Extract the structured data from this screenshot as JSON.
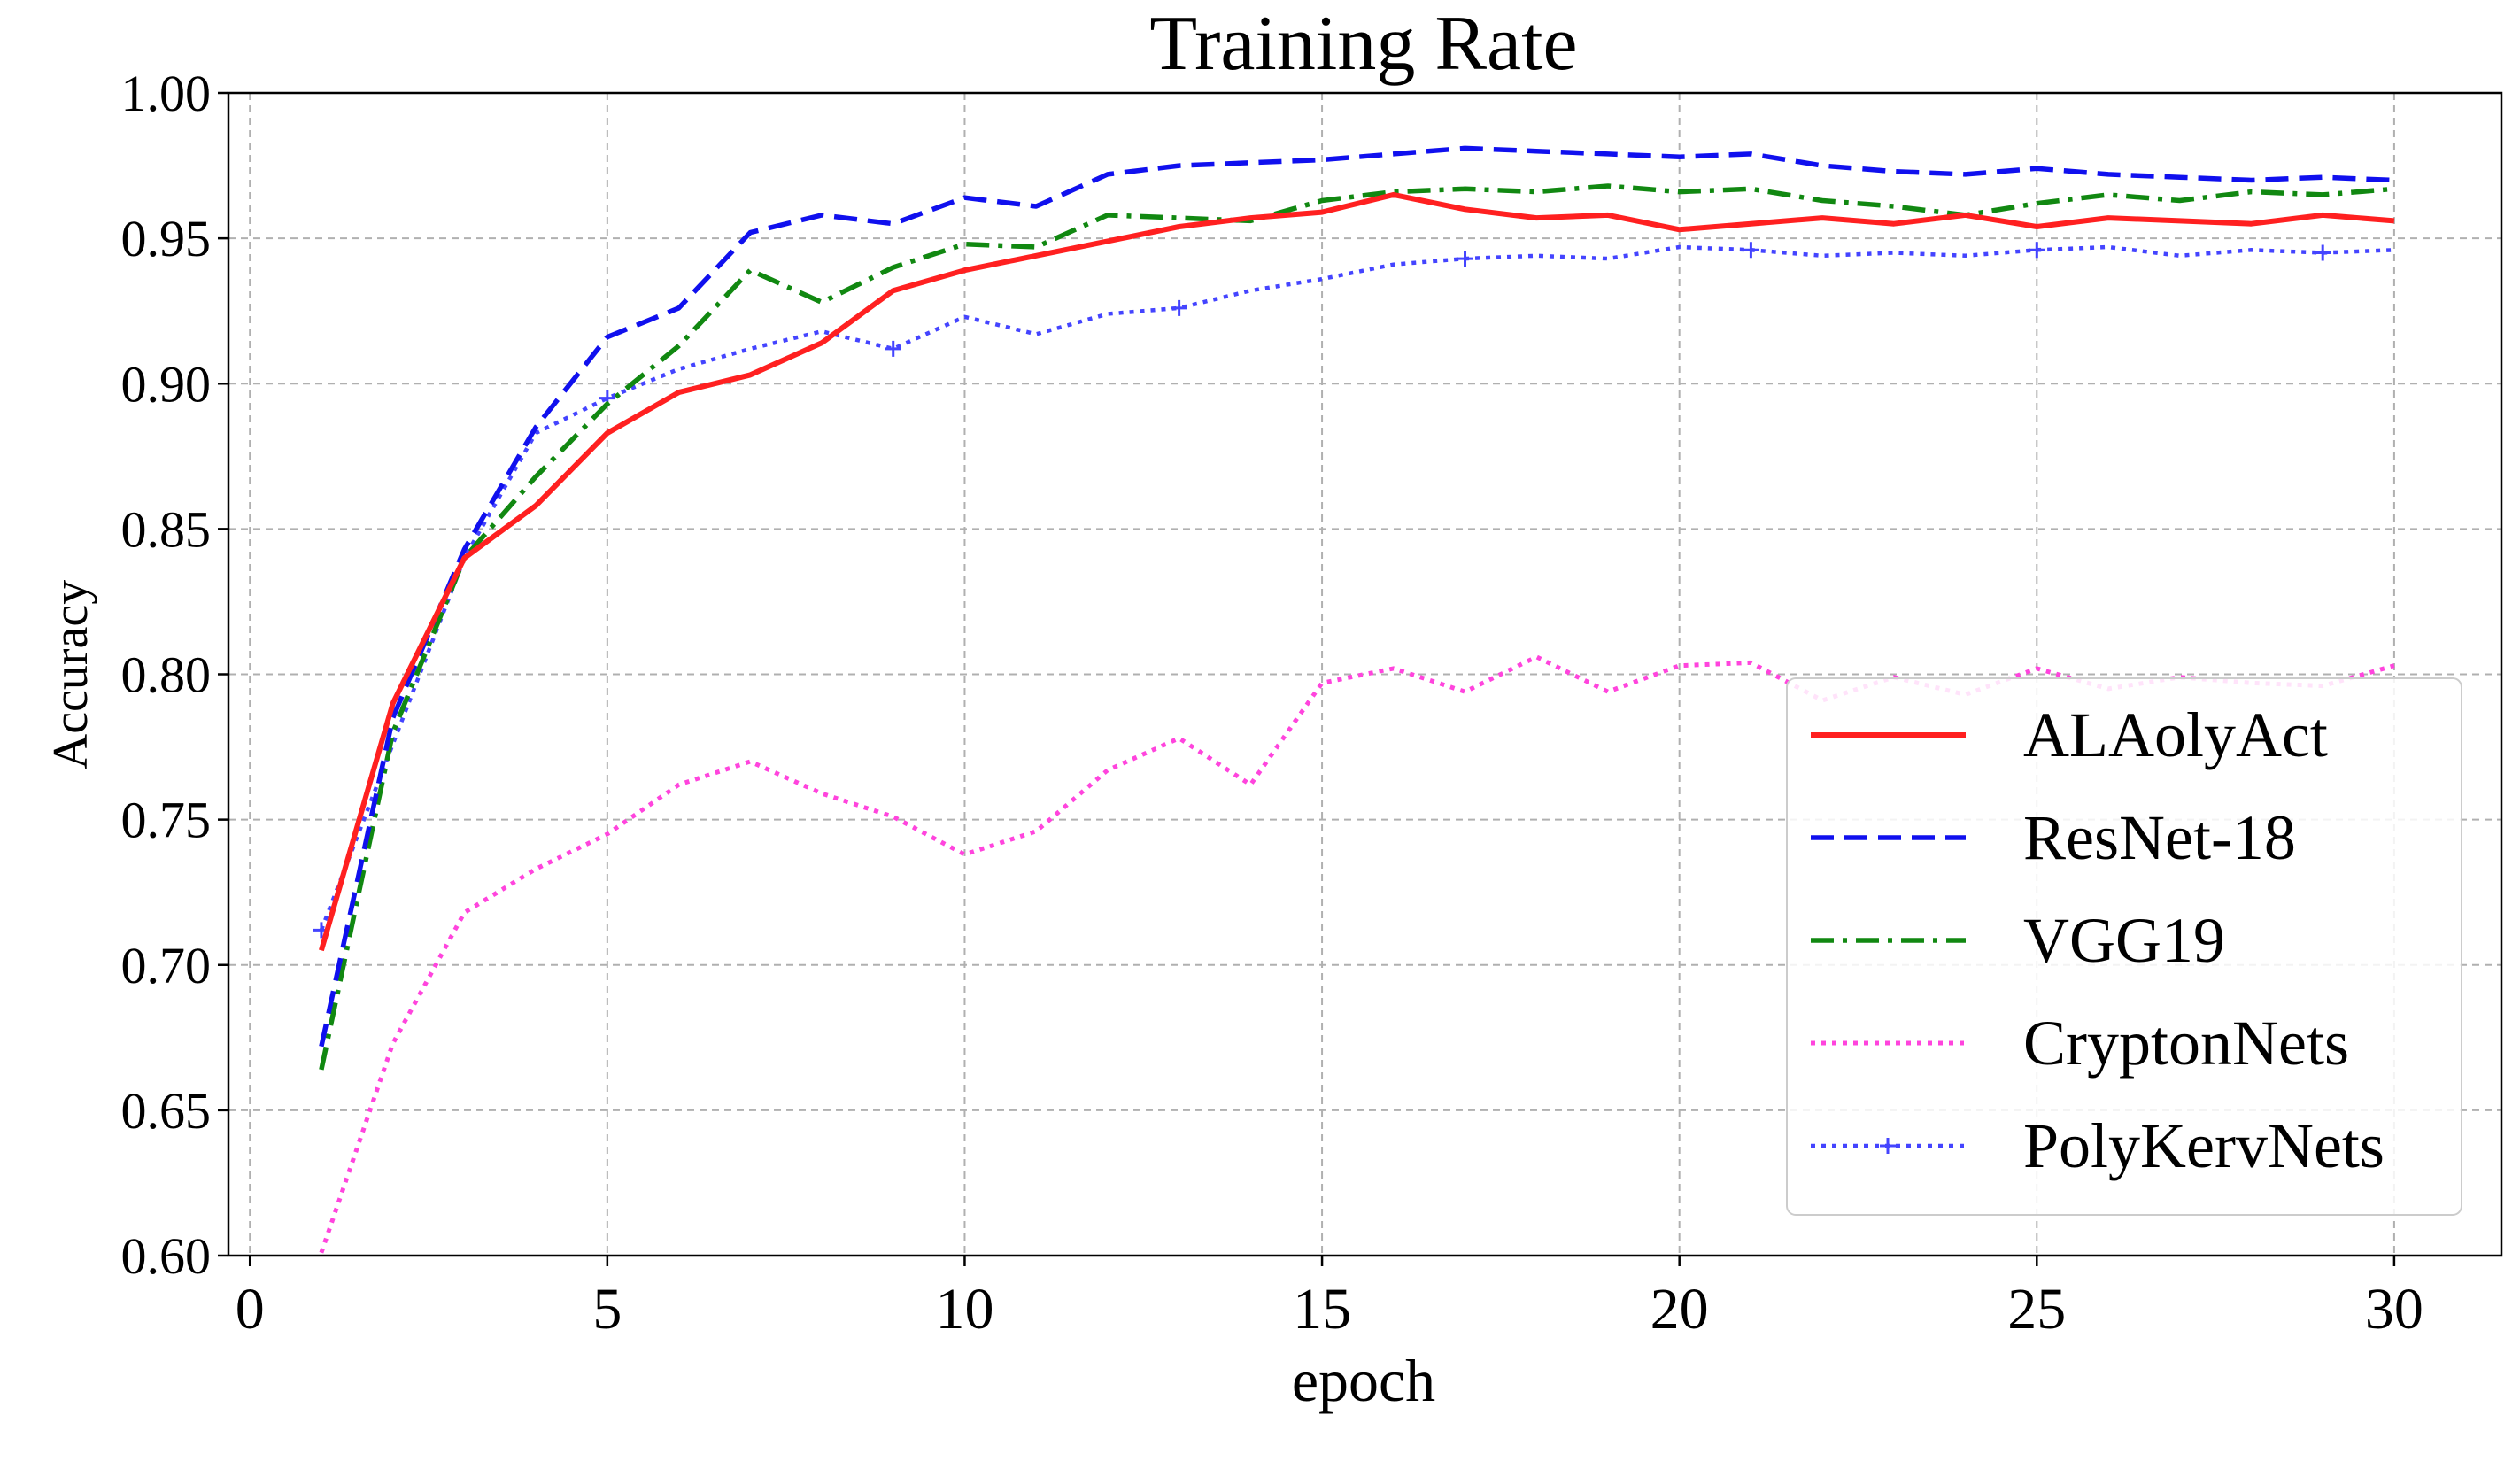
{
  "chart_data": {
    "type": "line",
    "title": "Training Rate",
    "xlabel": "epoch",
    "ylabel": "Accuracy",
    "xlim": [
      -0.3,
      31.5
    ],
    "ylim": [
      0.6,
      1.0
    ],
    "xticks": [
      0,
      5,
      10,
      15,
      20,
      25,
      30
    ],
    "xtick_labels": [
      "0",
      "5",
      "10",
      "15",
      "20",
      "25",
      "30"
    ],
    "yticks": [
      0.6,
      0.65,
      0.7,
      0.75,
      0.8,
      0.85,
      0.9,
      0.95,
      1.0
    ],
    "ytick_labels": [
      "0.60",
      "0.65",
      "0.70",
      "0.75",
      "0.80",
      "0.85",
      "0.90",
      "0.95",
      "1.00"
    ],
    "grid": true,
    "legend_position": "lower-right",
    "x": [
      1,
      2,
      3,
      4,
      5,
      6,
      7,
      8,
      9,
      10,
      11,
      12,
      13,
      14,
      15,
      16,
      17,
      18,
      19,
      20,
      21,
      22,
      23,
      24,
      25,
      26,
      27,
      28,
      29,
      30
    ],
    "series": [
      {
        "name": "ALAolyAct",
        "color": "#ff2020",
        "style": "solid",
        "values": [
          0.705,
          0.79,
          0.84,
          0.858,
          0.883,
          0.897,
          0.903,
          0.914,
          0.932,
          0.939,
          0.944,
          0.949,
          0.954,
          0.957,
          0.959,
          0.965,
          0.96,
          0.957,
          0.958,
          0.953,
          0.955,
          0.957,
          0.955,
          0.958,
          0.954,
          0.957,
          0.956,
          0.955,
          0.958,
          0.956
        ]
      },
      {
        "name": "ResNet-18",
        "color": "#1010ee",
        "style": "dashed",
        "values": [
          0.672,
          0.785,
          0.843,
          0.885,
          0.916,
          0.926,
          0.952,
          0.958,
          0.955,
          0.964,
          0.961,
          0.972,
          0.975,
          0.976,
          0.977,
          0.979,
          0.981,
          0.98,
          0.979,
          0.978,
          0.979,
          0.975,
          0.973,
          0.972,
          0.974,
          0.972,
          0.971,
          0.97,
          0.971,
          0.97
        ]
      },
      {
        "name": "VGG19",
        "color": "#118811",
        "style": "dashdot",
        "values": [
          0.664,
          0.78,
          0.84,
          0.868,
          0.893,
          0.913,
          0.939,
          0.928,
          0.94,
          0.948,
          0.947,
          0.958,
          0.957,
          0.956,
          0.963,
          0.966,
          0.967,
          0.966,
          0.968,
          0.966,
          0.967,
          0.963,
          0.961,
          0.958,
          0.962,
          0.965,
          0.963,
          0.966,
          0.965,
          0.967
        ]
      },
      {
        "name": "CryptonNets",
        "color": "#ff44dd",
        "style": "dotted",
        "values": [
          0.601,
          0.673,
          0.718,
          0.733,
          0.745,
          0.762,
          0.77,
          0.759,
          0.751,
          0.738,
          0.746,
          0.767,
          0.778,
          0.762,
          0.797,
          0.802,
          0.794,
          0.806,
          0.794,
          0.803,
          0.804,
          0.791,
          0.799,
          0.793,
          0.802,
          0.795,
          0.799,
          0.797,
          0.796,
          0.803
        ]
      },
      {
        "name": "PolyKervNets",
        "color": "#4444ff",
        "style": "dotted-plus",
        "values": [
          0.712,
          0.776,
          0.84,
          0.883,
          0.895,
          0.905,
          0.912,
          0.918,
          0.912,
          0.923,
          0.917,
          0.924,
          0.926,
          0.932,
          0.936,
          0.941,
          0.943,
          0.944,
          0.943,
          0.947,
          0.946,
          0.944,
          0.945,
          0.944,
          0.946,
          0.947,
          0.944,
          0.946,
          0.945,
          0.946
        ]
      }
    ]
  }
}
